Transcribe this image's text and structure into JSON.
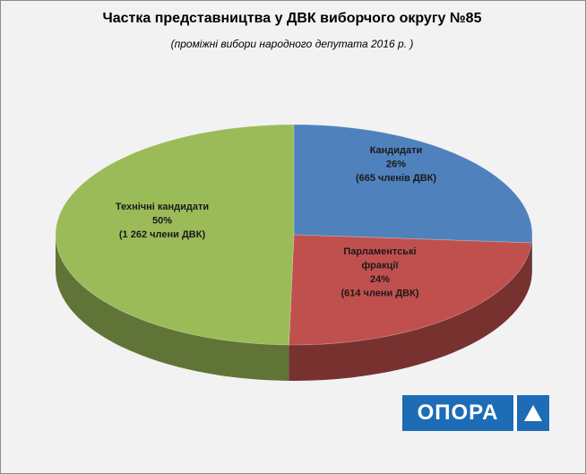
{
  "chart_data": {
    "type": "pie",
    "title": "Частка представництва у ДВК виборчого округу №85",
    "subtitle": "(проміжні вибори народного депутата 2016 р. )",
    "slices": [
      {
        "name": "Кандидати",
        "percent_label": "26%",
        "count_label": "(665 членів  ДВК)",
        "value": 665,
        "color": "#4f81bd"
      },
      {
        "name": "Парламентські фракції",
        "name_lines": [
          "Парламентські",
          "фракції"
        ],
        "percent_label": "24%",
        "count_label": "(614 члени ДВК)",
        "value": 614,
        "color": "#c0504d"
      },
      {
        "name": "Технічні  кандидати",
        "percent_label": "50%",
        "count_label": "(1 262 члени ДВК)",
        "value": 1262,
        "color": "#9bbb59"
      }
    ]
  },
  "logo": {
    "text": "ОПОРА",
    "icon": "triangle-icon"
  }
}
